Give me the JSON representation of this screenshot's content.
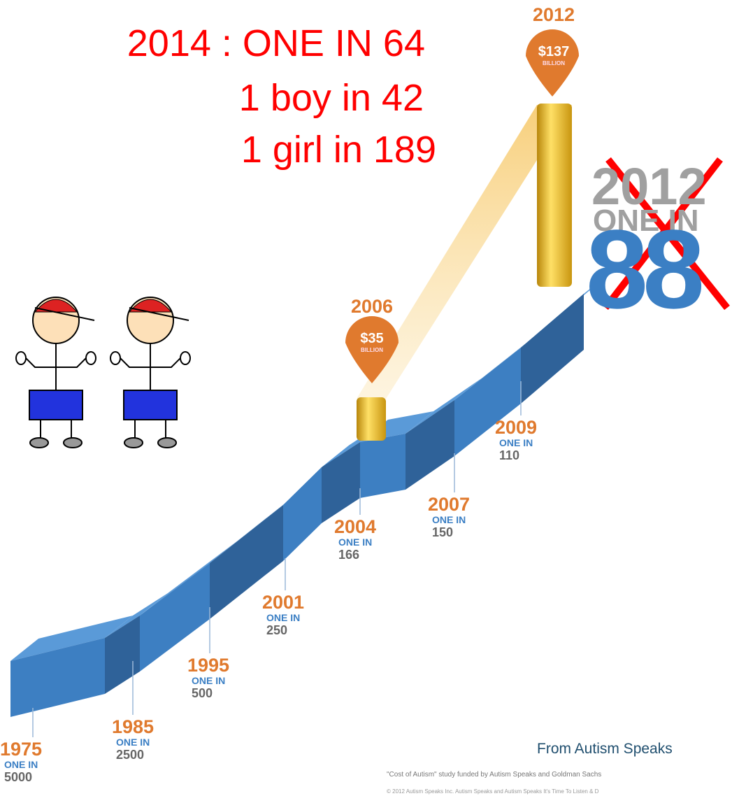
{
  "headline": {
    "lines": [
      "2014 : ONE IN 64",
      "1 boy in 42",
      "1 girl in 189"
    ]
  },
  "milestones": [
    {
      "year": "1975",
      "label": "ONE IN",
      "value": "5000"
    },
    {
      "year": "1985",
      "label": "ONE IN",
      "value": "2500"
    },
    {
      "year": "1995",
      "label": "ONE IN",
      "value": "500"
    },
    {
      "year": "2001",
      "label": "ONE IN",
      "value": "250"
    },
    {
      "year": "2004",
      "label": "ONE IN",
      "value": "166"
    },
    {
      "year": "2007",
      "label": "ONE IN",
      "value": "150"
    },
    {
      "year": "2009",
      "label": "ONE IN",
      "value": "110"
    }
  ],
  "costs": [
    {
      "year": "2006",
      "amount": "$35",
      "unit": "BILLION"
    },
    {
      "year": "2012",
      "amount": "$137",
      "unit": "BILLION"
    }
  ],
  "previous": {
    "year": "2012",
    "label": "ONE IN",
    "value": "88"
  },
  "source": "From Autism Speaks",
  "footnotes": [
    "\"Cost of Autism\" study funded by Autism Speaks and Goldman Sachs",
    "© 2012 Autism Speaks Inc. Autism Speaks and Autism Speaks It's Time To Listen & D"
  ]
}
